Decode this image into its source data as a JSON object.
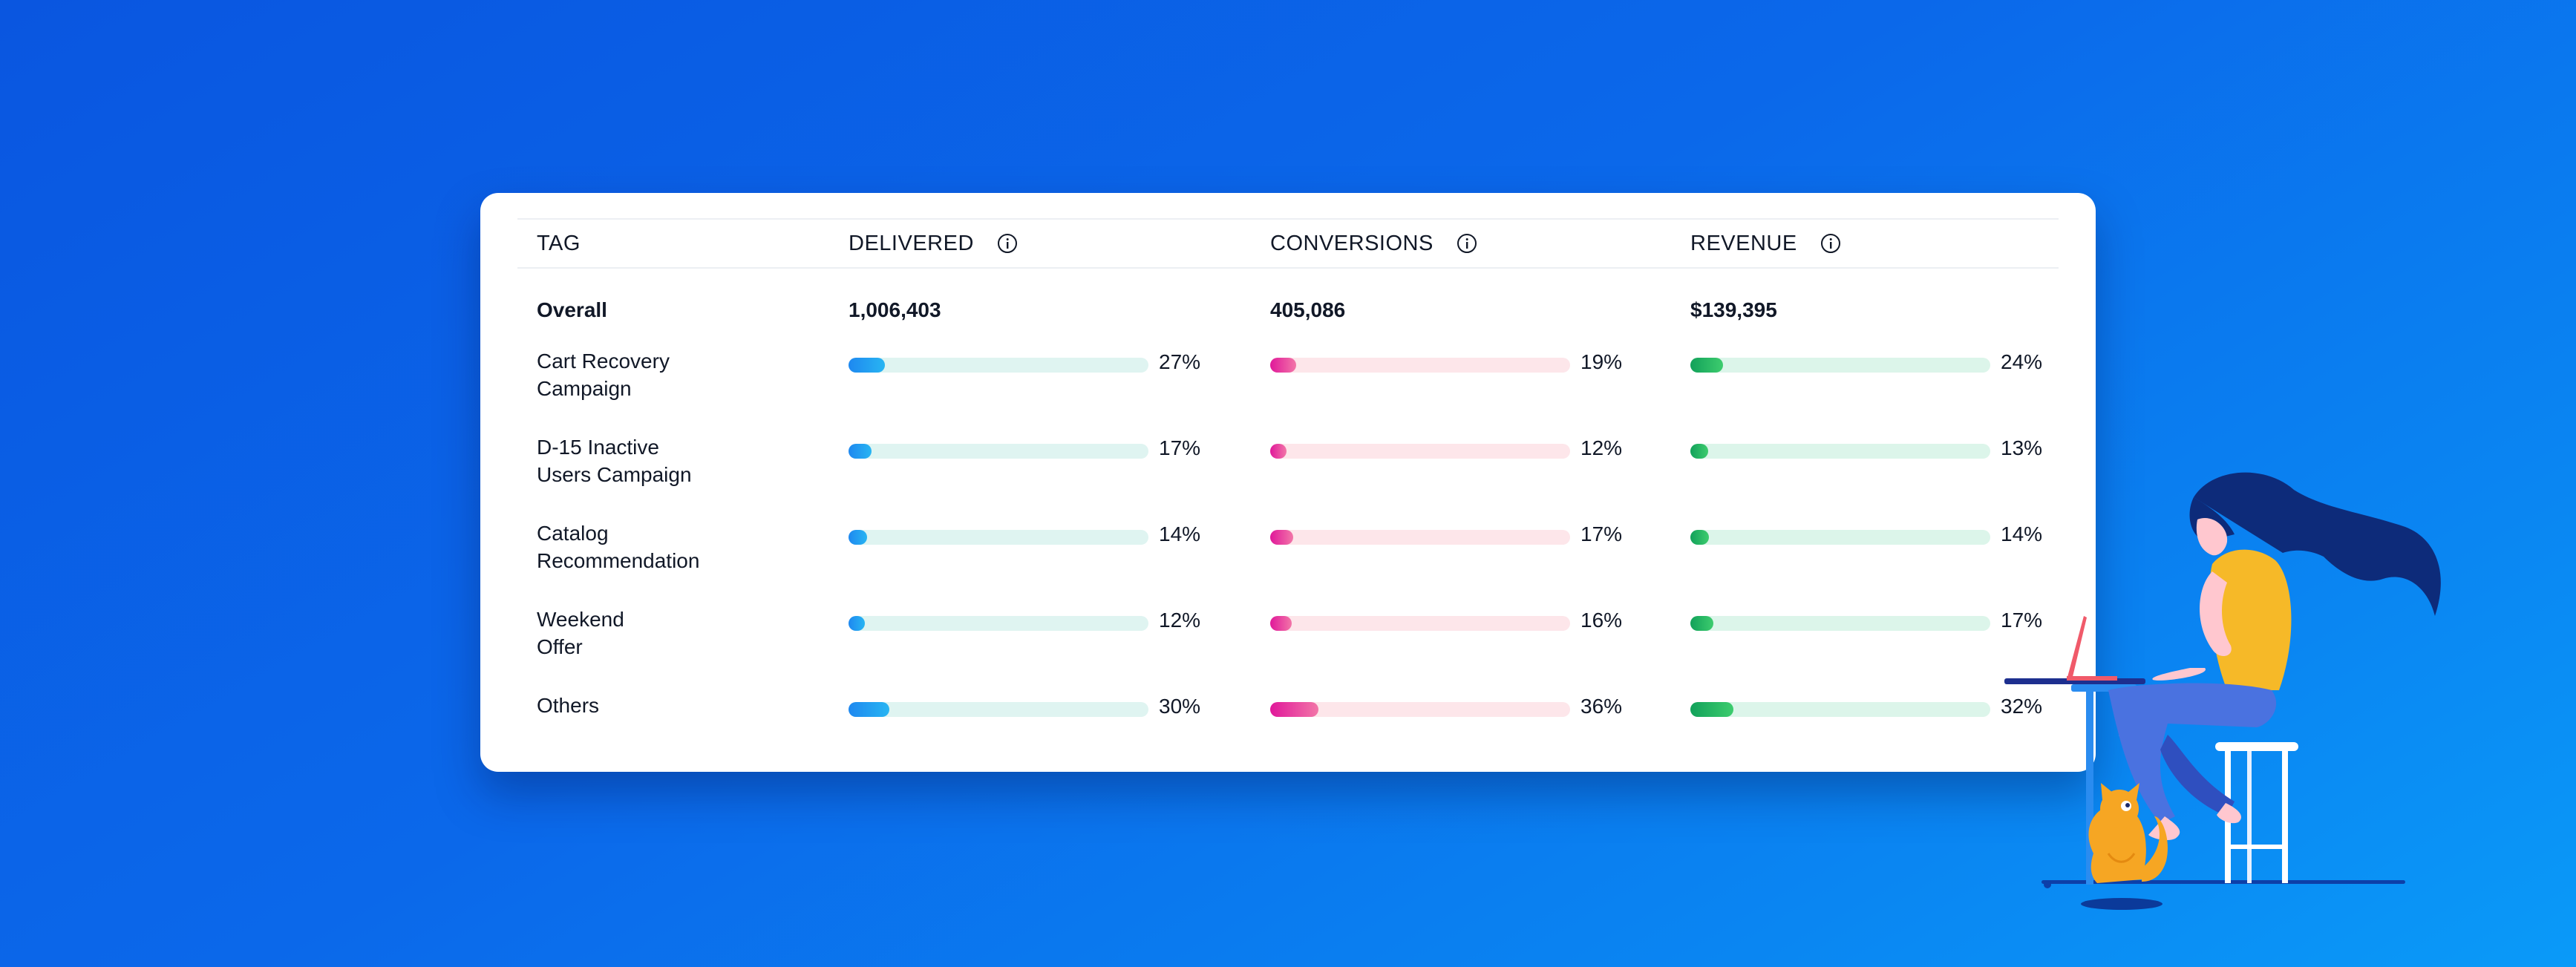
{
  "headers": {
    "tag": "TAG",
    "delivered": "DELIVERED",
    "conversions": "CONVERSIONS",
    "revenue": "REVENUE"
  },
  "overall": {
    "label": "Overall",
    "delivered": "1,006,403",
    "conversions": "405,086",
    "revenue": "$139,395"
  },
  "rows": [
    {
      "label_line1": "Cart Recovery",
      "label_line2": "Campaign",
      "delivered": {
        "text": "27%",
        "value": 27
      },
      "conversions": {
        "text": "19%",
        "value": 19
      },
      "revenue": {
        "text": "24%",
        "value": 24
      }
    },
    {
      "label_line1": "D-15 Inactive",
      "label_line2": "Users Campaign",
      "delivered": {
        "text": "17%",
        "value": 17
      },
      "conversions": {
        "text": "12%",
        "value": 12
      },
      "revenue": {
        "text": "13%",
        "value": 13
      }
    },
    {
      "label_line1": "Catalog",
      "label_line2": "Recommendation",
      "delivered": {
        "text": "14%",
        "value": 14
      },
      "conversions": {
        "text": "17%",
        "value": 17
      },
      "revenue": {
        "text": "14%",
        "value": 14
      }
    },
    {
      "label_line1": "Weekend",
      "label_line2": "Offer",
      "delivered": {
        "text": "12%",
        "value": 12
      },
      "conversions": {
        "text": "16%",
        "value": 16
      },
      "revenue": {
        "text": "17%",
        "value": 17
      }
    },
    {
      "label_line1": "Others",
      "label_line2": "",
      "delivered": {
        "text": "30%",
        "value": 30
      },
      "conversions": {
        "text": "36%",
        "value": 36
      },
      "revenue": {
        "text": "32%",
        "value": 32
      }
    }
  ],
  "icons": {
    "info": "info-circle-icon",
    "illustration": "woman-on-stool-with-laptop-and-cat-illustration"
  },
  "colors": {
    "background": "#0b68ea",
    "delivered_bar": "#1e88f0",
    "conversions_bar": "#e0189a",
    "revenue_bar": "#12a15a"
  }
}
